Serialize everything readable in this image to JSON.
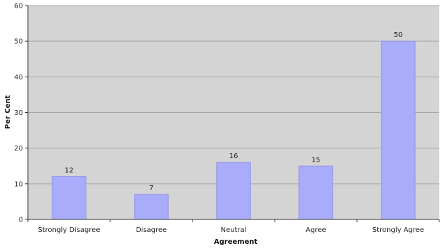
{
  "chart_data": {
    "type": "bar",
    "categories": [
      "Strongly Disagree",
      "Disagree",
      "Neutral",
      "Agree",
      "Strongly Agree"
    ],
    "values": [
      12,
      7,
      16,
      15,
      50
    ],
    "data_labels": [
      "12",
      "7",
      "16",
      "15",
      "50"
    ],
    "title": "",
    "xlabel": "Agreement",
    "ylabel": "Per Cent",
    "ylim": [
      0,
      60
    ],
    "yticks": [
      0,
      10,
      20,
      30,
      40,
      50,
      60
    ],
    "grid": true,
    "legend": "none",
    "colors": {
      "bar": "#a9abfb",
      "bar_edge": "#8f92e6",
      "plot_background": "#d4d4d4",
      "gridline": "#a6a6a6"
    }
  }
}
